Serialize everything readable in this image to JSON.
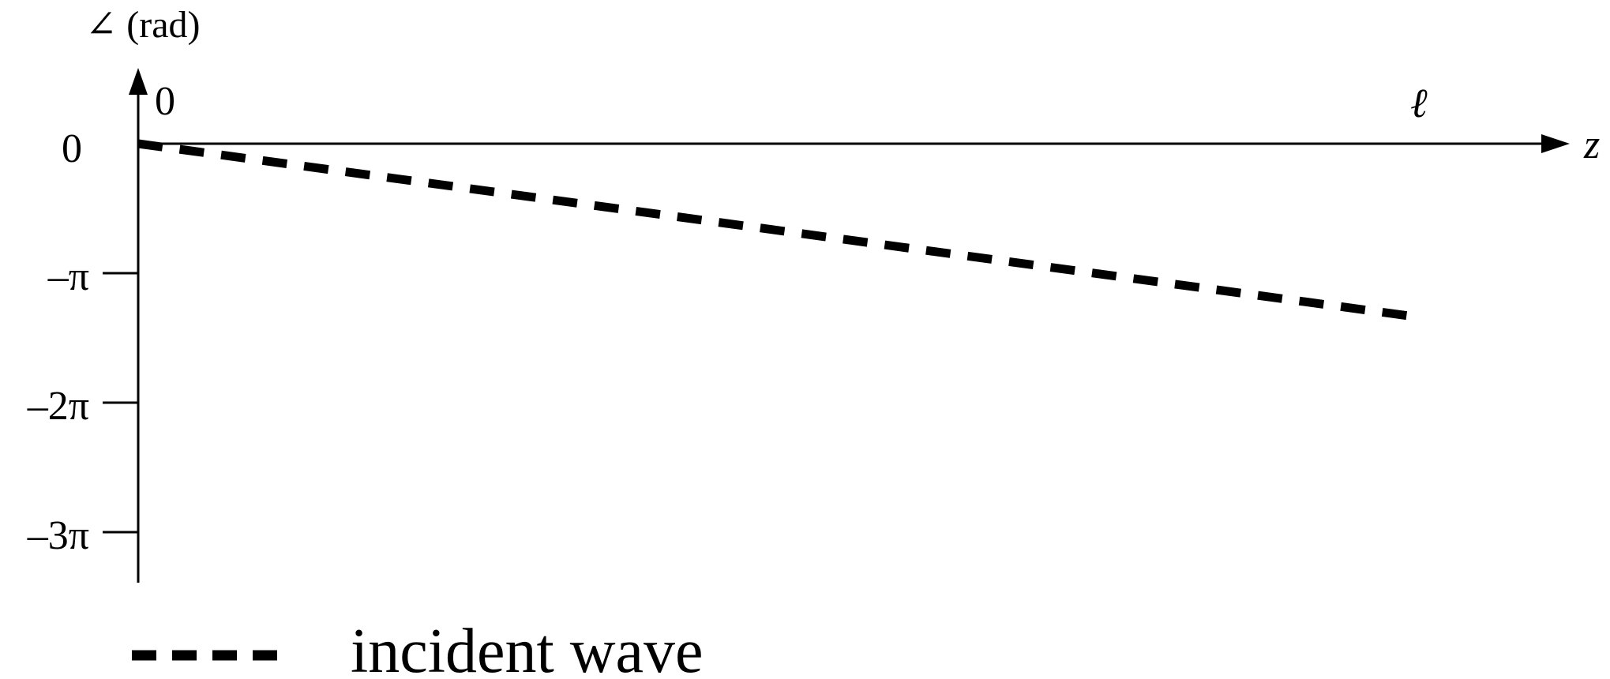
{
  "chart_data": {
    "type": "line",
    "title": "",
    "ylabel": "∠ (rad)",
    "xlabel": "z",
    "x_ticks": [
      {
        "value": 0,
        "label": "0"
      },
      {
        "value": 1,
        "label": "ℓ"
      }
    ],
    "y_ticks": [
      {
        "value": 0,
        "label": "0"
      },
      {
        "value": -1,
        "label": "–π"
      },
      {
        "value": -2,
        "label": "–2π"
      },
      {
        "value": -3,
        "label": "–3π"
      }
    ],
    "y_unit": "π rad",
    "xlim": [
      0,
      1.06
    ],
    "ylim": [
      -3.4,
      0.6
    ],
    "grid": false,
    "legend_position": "bottom-left",
    "series": [
      {
        "name": "incident wave",
        "style": "dashed",
        "color": "#000000",
        "x": [
          0,
          1
        ],
        "y": [
          0,
          -1.34
        ]
      }
    ]
  }
}
